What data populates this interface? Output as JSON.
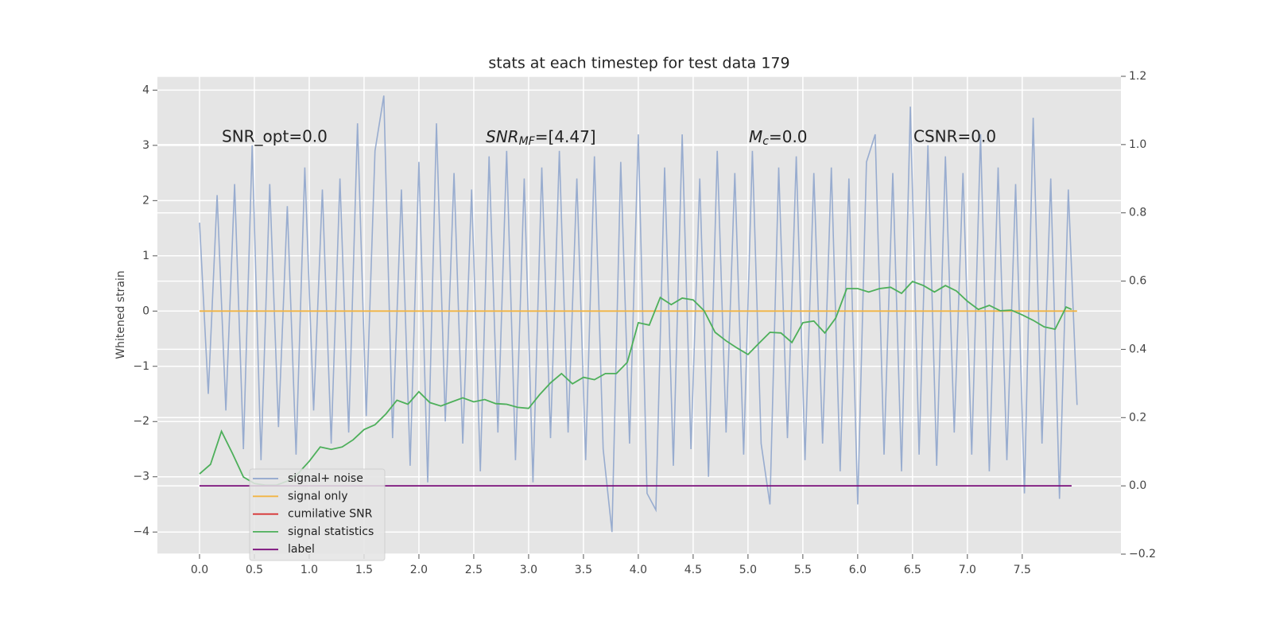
{
  "chart_data": {
    "type": "line",
    "title": "stats at each timestep for test data 179",
    "ylabel": "Whitened strain",
    "xlim": [
      -0.384,
      8.4
    ],
    "ylim": [
      -4.4,
      4.25
    ],
    "y2lim": [
      -0.2,
      1.2
    ],
    "grid": true,
    "legend": "lower left",
    "xticks": [
      {
        "value": 0,
        "label": "0.0"
      },
      {
        "value": 0.5,
        "label": "0.5"
      },
      {
        "value": 1,
        "label": "1.0"
      },
      {
        "value": 1.5,
        "label": "1.5"
      },
      {
        "value": 2,
        "label": "2.0"
      },
      {
        "value": 2.5,
        "label": "2.5"
      },
      {
        "value": 3,
        "label": "3.0"
      },
      {
        "value": 3.5,
        "label": "3.5"
      },
      {
        "value": 4,
        "label": "4.0"
      },
      {
        "value": 4.5,
        "label": "4.5"
      },
      {
        "value": 5,
        "label": "5.0"
      },
      {
        "value": 5.5,
        "label": "5.5"
      },
      {
        "value": 6,
        "label": "6.0"
      },
      {
        "value": 6.5,
        "label": "6.5"
      },
      {
        "value": 7,
        "label": "7.0"
      },
      {
        "value": 7.5,
        "label": "7.5"
      }
    ],
    "yticks": [
      {
        "value": -4,
        "label": "−4"
      },
      {
        "value": -3,
        "label": "−3"
      },
      {
        "value": -2,
        "label": "−2"
      },
      {
        "value": -1,
        "label": "−1"
      },
      0,
      1,
      2,
      3,
      4
    ],
    "y2ticks": [
      {
        "value": -0.2,
        "label": "−0.2"
      },
      {
        "value": 0,
        "label": "0.0"
      },
      {
        "value": 0.2,
        "label": "0.2"
      },
      {
        "value": 0.4,
        "label": "0.4"
      },
      {
        "value": 0.6,
        "label": "0.6"
      },
      {
        "value": 0.8,
        "label": "0.8"
      },
      {
        "value": 1,
        "label": "1.0"
      },
      {
        "value": 1.2,
        "label": "1.2"
      }
    ],
    "annotations": [
      {
        "text": "SNR_opt=0.0"
      },
      {
        "base": "SNR",
        "sub": "MF",
        "rest": "=[4.47]"
      },
      {
        "base": "M",
        "sub": "c",
        "rest": "=0.0"
      },
      {
        "text": "CSNR=0.0"
      }
    ],
    "series": [
      {
        "name": "signal+ noise",
        "color": "#8fa5cc",
        "x": [
          0,
          0.08,
          0.16,
          0.24,
          0.32,
          0.4,
          0.48,
          0.56,
          0.64,
          0.72,
          0.8,
          0.88,
          0.96,
          1.04,
          1.12,
          1.2,
          1.28,
          1.36,
          1.44,
          1.52,
          1.6,
          1.68,
          1.76,
          1.84,
          1.92,
          2,
          2.08,
          2.16,
          2.24,
          2.32,
          2.4,
          2.48,
          2.56,
          2.64,
          2.72,
          2.8,
          2.88,
          2.96,
          3.04,
          3.12,
          3.2,
          3.28,
          3.36,
          3.44,
          3.52,
          3.6,
          3.68,
          3.76,
          3.84,
          3.92,
          4,
          4.08,
          4.16,
          4.24,
          4.32,
          4.4,
          4.48,
          4.56,
          4.64,
          4.72,
          4.8,
          4.88,
          4.96,
          5.04,
          5.12,
          5.2,
          5.28,
          5.36,
          5.44,
          5.52,
          5.6,
          5.68,
          5.76,
          5.84,
          5.92,
          6,
          6.08,
          6.16,
          6.24,
          6.32,
          6.4,
          6.48,
          6.56,
          6.64,
          6.72,
          6.8,
          6.88,
          6.96,
          7.04,
          7.12,
          7.2,
          7.28,
          7.36,
          7.44,
          7.52,
          7.6,
          7.68,
          7.76,
          7.84,
          7.92,
          8
        ],
        "values": [
          1.6,
          -1.5,
          2.1,
          -1.8,
          2.3,
          -2.5,
          3.0,
          -2.7,
          2.3,
          -2.1,
          1.9,
          -2.6,
          2.6,
          -1.8,
          2.2,
          -2.4,
          2.4,
          -2.2,
          3.4,
          -1.9,
          2.9,
          3.9,
          -2.3,
          2.2,
          -2.8,
          2.7,
          -3.1,
          3.4,
          -2.0,
          2.5,
          -2.4,
          2.2,
          -2.9,
          2.8,
          -2.2,
          2.9,
          -2.7,
          2.4,
          -3.1,
          2.6,
          -2.3,
          2.9,
          -2.2,
          2.4,
          -2.7,
          2.8,
          -2.5,
          -4.0,
          2.7,
          -2.4,
          3.2,
          -3.3,
          -3.6,
          2.6,
          -2.8,
          3.2,
          -2.5,
          2.4,
          -3.0,
          2.9,
          -2.2,
          2.5,
          -2.6,
          2.9,
          -2.4,
          -3.5,
          2.6,
          -2.3,
          2.8,
          -2.7,
          2.5,
          -2.4,
          2.6,
          -2.9,
          2.4,
          -3.5,
          2.7,
          3.2,
          -2.6,
          2.5,
          -2.9,
          3.7,
          -2.6,
          3.0,
          -2.8,
          2.8,
          -2.2,
          2.5,
          -2.6,
          3.2,
          -2.9,
          2.6,
          -2.7,
          2.3,
          -3.3,
          3.5,
          -2.4,
          2.4,
          -3.4,
          2.2,
          -1.7
        ],
        "axis": "y"
      },
      {
        "name": "signal only",
        "color": "#f2b544",
        "x": [
          0,
          8
        ],
        "values": [
          0,
          0
        ],
        "axis": "y"
      },
      {
        "name": "cumilative SNR",
        "color": "#d62728"
      },
      {
        "name": "signal statistics",
        "color": "#4daf5a",
        "x": [
          0,
          0.1,
          0.2,
          0.3,
          0.4,
          0.5,
          0.6,
          0.7,
          0.8,
          0.9,
          1,
          1.1,
          1.2,
          1.3,
          1.4,
          1.5,
          1.6,
          1.7,
          1.8,
          1.9,
          2,
          2.1,
          2.2,
          2.3,
          2.4,
          2.5,
          2.6,
          2.7,
          2.8,
          2.9,
          3,
          3.1,
          3.2,
          3.3,
          3.4,
          3.5,
          3.6,
          3.7,
          3.8,
          3.9,
          4,
          4.1,
          4.2,
          4.3,
          4.4,
          4.5,
          4.6,
          4.7,
          4.8,
          4.9,
          5,
          5.1,
          5.2,
          5.3,
          5.4,
          5.5,
          5.6,
          5.7,
          5.8,
          5.9,
          6,
          6.1,
          6.2,
          6.3,
          6.4,
          6.5,
          6.6,
          6.7,
          6.8,
          6.9,
          7,
          7.1,
          7.2,
          7.3,
          7.4,
          7.5,
          7.6,
          7.7,
          7.8,
          7.9,
          7.95
        ],
        "values": [
          0.035,
          0.063,
          0.16,
          0.095,
          0.026,
          0.007,
          0.002,
          0.002,
          0.014,
          0.037,
          0.072,
          0.114,
          0.107,
          0.114,
          0.135,
          0.165,
          0.179,
          0.211,
          0.251,
          0.239,
          0.276,
          0.244,
          0.234,
          0.246,
          0.258,
          0.246,
          0.253,
          0.241,
          0.239,
          0.23,
          0.227,
          0.267,
          0.302,
          0.329,
          0.299,
          0.318,
          0.311,
          0.329,
          0.329,
          0.362,
          0.478,
          0.471,
          0.552,
          0.531,
          0.55,
          0.545,
          0.513,
          0.45,
          0.425,
          0.404,
          0.385,
          0.418,
          0.45,
          0.448,
          0.42,
          0.478,
          0.483,
          0.448,
          0.492,
          0.578,
          0.578,
          0.568,
          0.578,
          0.582,
          0.564,
          0.599,
          0.587,
          0.568,
          0.587,
          0.571,
          0.541,
          0.517,
          0.529,
          0.513,
          0.515,
          0.501,
          0.485,
          0.466,
          0.459,
          0.524,
          0.517
        ],
        "axis": "y2"
      },
      {
        "name": "label",
        "color": "#7b0f7b",
        "x": [
          0,
          7.95
        ],
        "values": [
          0,
          0
        ],
        "axis": "y2"
      }
    ]
  }
}
